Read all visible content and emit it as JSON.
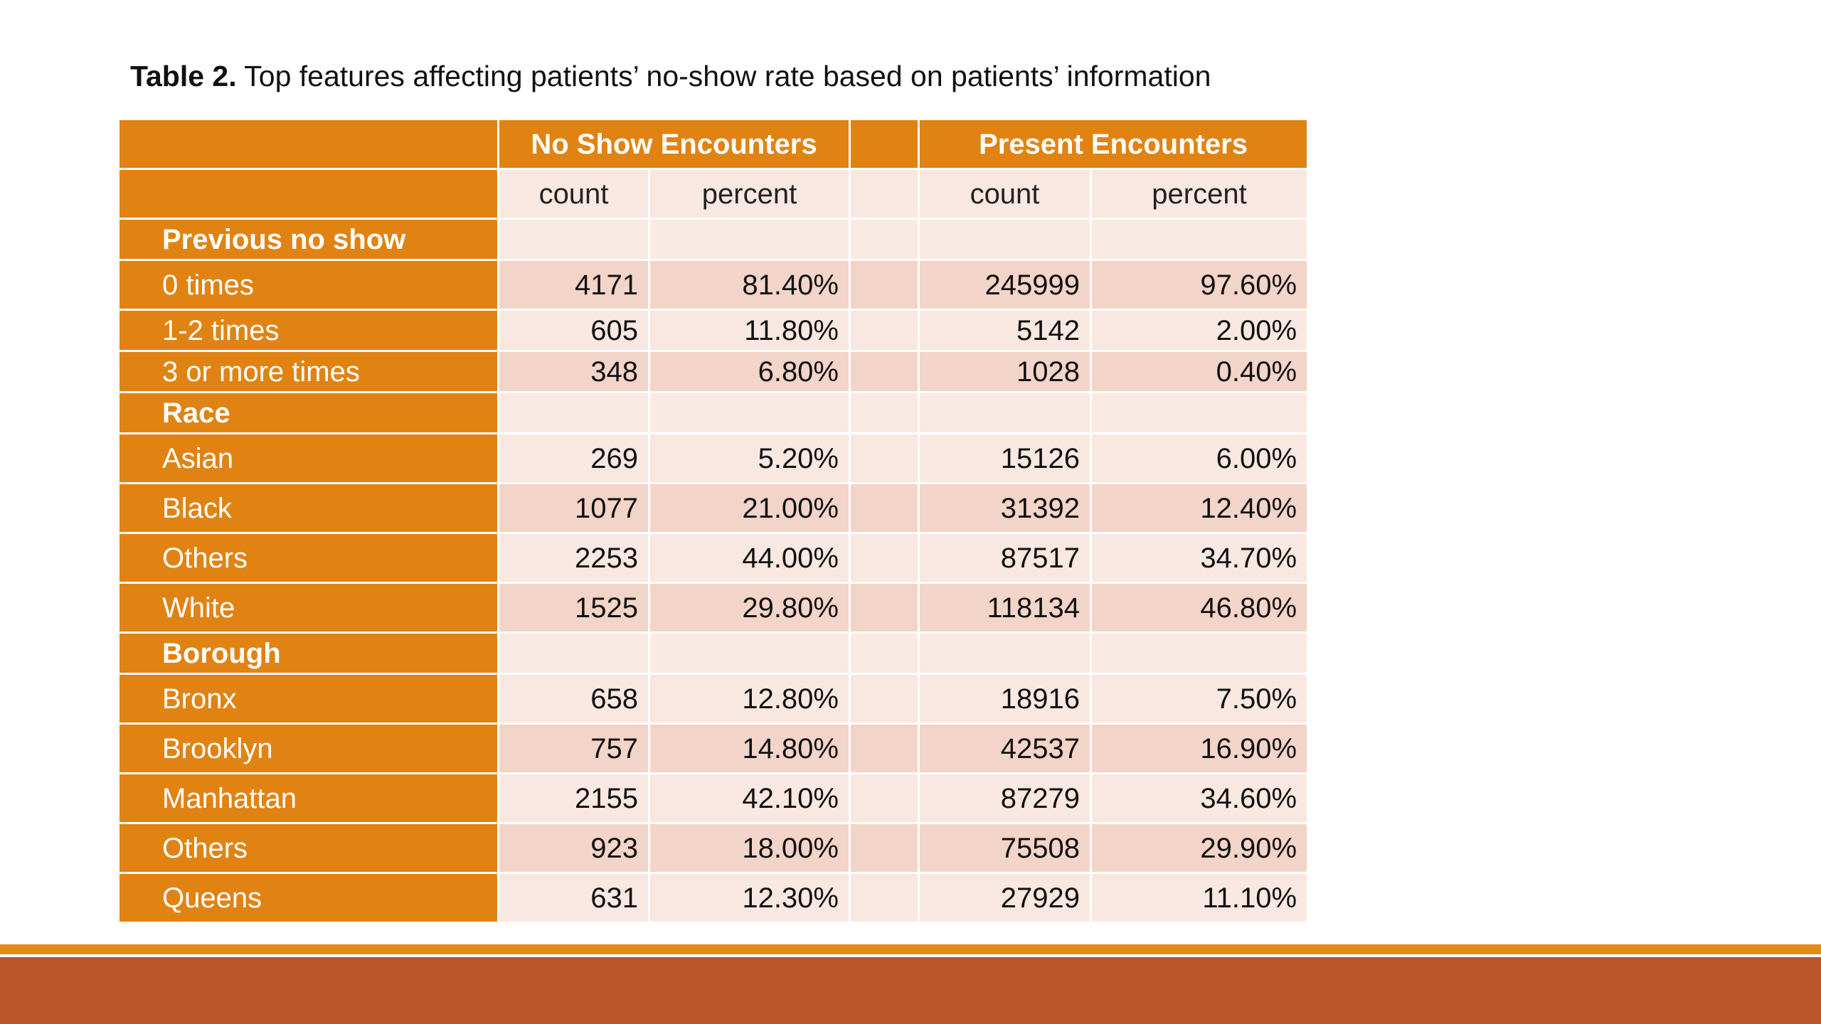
{
  "caption": {
    "label": "Table 2.",
    "text": "Top features affecting patients’ no-show rate based on patients’ information"
  },
  "header": {
    "group1": "No Show Encounters",
    "group2": "Present Encounters",
    "sub": [
      "count",
      "percent",
      "count",
      "percent"
    ]
  },
  "rows": [
    {
      "section": "Previous no show"
    },
    {
      "label": "0 times",
      "values": [
        "4171",
        "81.40%",
        "245999",
        "97.60%"
      ]
    },
    {
      "label": "1-2 times",
      "values": [
        "605",
        "11.80%",
        "5142",
        "2.00%"
      ]
    },
    {
      "label": "3 or more times",
      "values": [
        "348",
        "6.80%",
        "1028",
        "0.40%"
      ]
    },
    {
      "section": "Race"
    },
    {
      "label": "Asian",
      "values": [
        "269",
        "5.20%",
        "15126",
        "6.00%"
      ]
    },
    {
      "label": "Black",
      "values": [
        "1077",
        "21.00%",
        "31392",
        "12.40%"
      ]
    },
    {
      "label": "Others",
      "values": [
        "2253",
        "44.00%",
        "87517",
        "34.70%"
      ]
    },
    {
      "label": "White",
      "values": [
        "1525",
        "29.80%",
        "118134",
        "46.80%"
      ]
    },
    {
      "section": "Borough"
    },
    {
      "label": "Bronx",
      "values": [
        "658",
        "12.80%",
        "18916",
        "7.50%"
      ]
    },
    {
      "label": "Brooklyn",
      "values": [
        "757",
        "14.80%",
        "42537",
        "16.90%"
      ]
    },
    {
      "label": "Manhattan",
      "values": [
        "2155",
        "42.10%",
        "87279",
        "34.60%"
      ]
    },
    {
      "label": "Others",
      "values": [
        "923",
        "18.00%",
        "75508",
        "29.90%"
      ]
    },
    {
      "label": "Queens",
      "values": [
        "631",
        "12.30%",
        "27929",
        "11.10%"
      ]
    }
  ],
  "colors": {
    "header_orange": "#e18313",
    "cell_light": "#f9e7e1",
    "cell_dark": "#f3d4c8",
    "footer_band": "#b95528",
    "footer_line": "#e38b17"
  }
}
